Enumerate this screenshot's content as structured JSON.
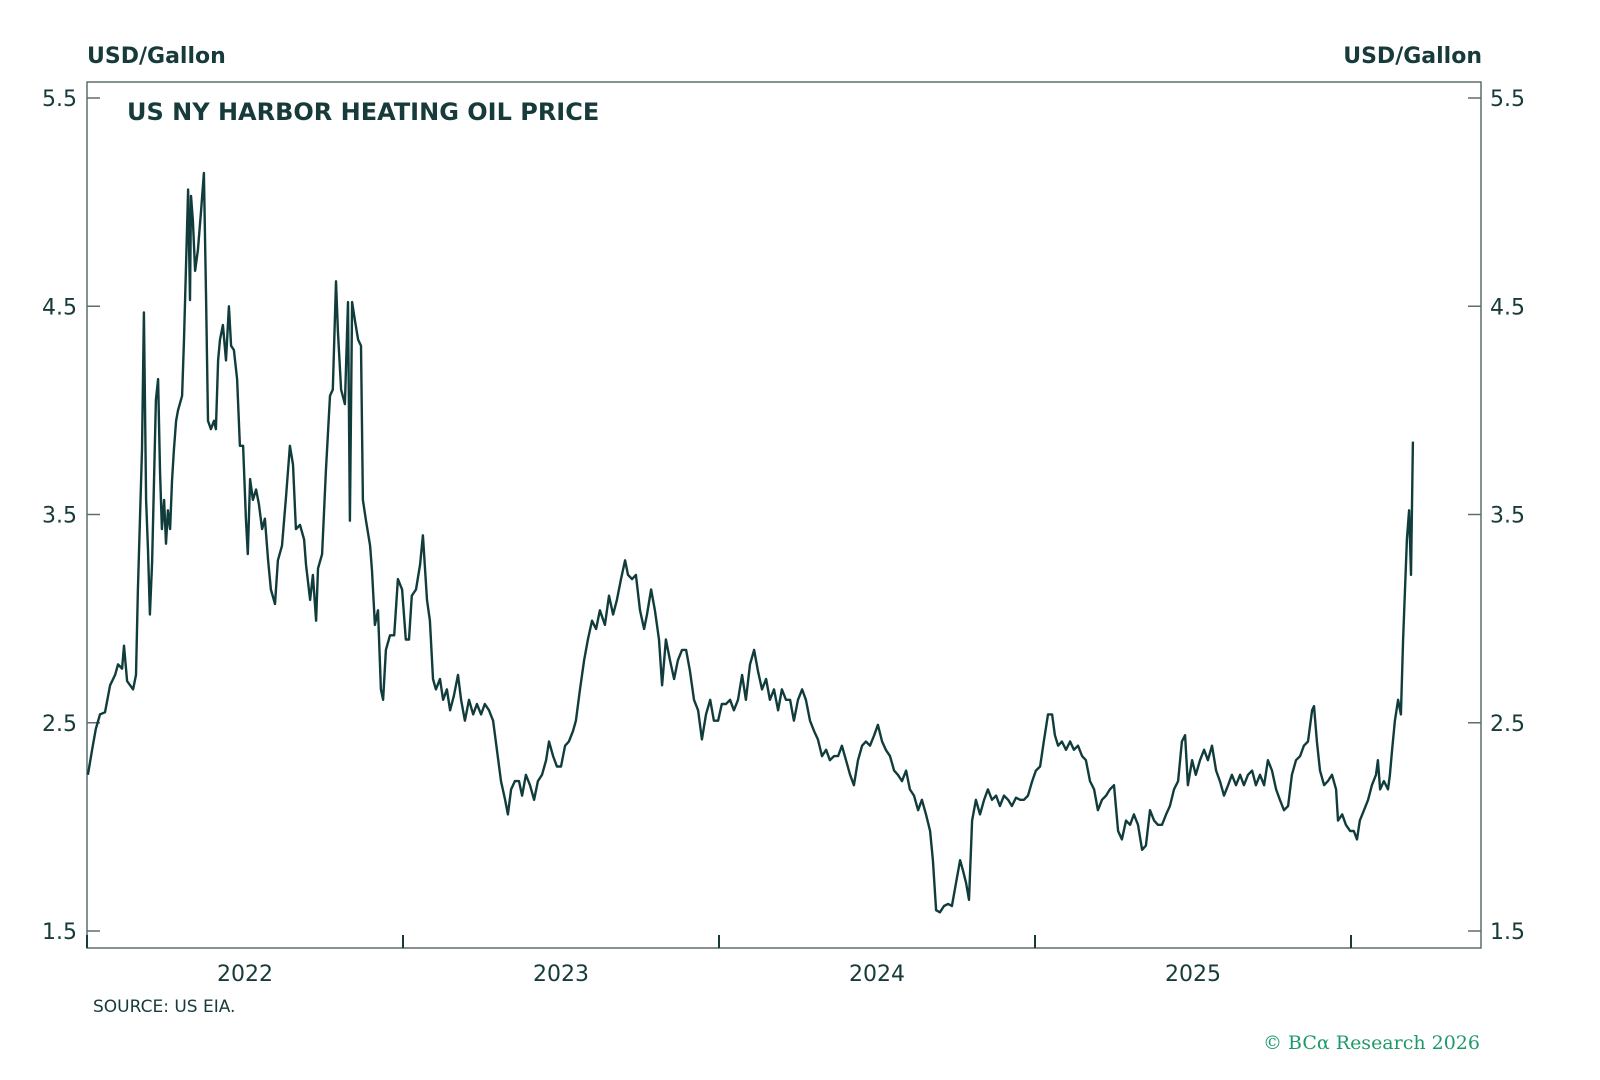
{
  "chart_data": {
    "type": "line",
    "title": "US NY HARBOR HEATING OIL PRICE",
    "ylabel_left": "USD/Gallon",
    "ylabel_right": "USD/Gallon",
    "ylim": [
      1.5,
      5.5
    ],
    "yticks": [
      1.5,
      2.5,
      3.5,
      4.5,
      5.5
    ],
    "ytick_labels": [
      "1.5",
      "2.5",
      "3.5",
      "4.5",
      "5.5"
    ],
    "xlim": [
      2022.0,
      2026.4
    ],
    "xtick_positions": [
      2022,
      2023,
      2024,
      2025,
      2026
    ],
    "xtick_labels": [
      "2022",
      "2023",
      "2024",
      "2025"
    ],
    "grid": false,
    "line_color": "#113c3c",
    "series": [
      {
        "x": [
          2022.003,
          2022.016,
          2022.028,
          2022.041,
          2022.057,
          2022.073,
          2022.089,
          2022.098,
          2022.111,
          2022.117,
          2022.127,
          2022.146,
          2022.155,
          2022.161,
          2022.168,
          2022.174,
          2022.18,
          2022.187,
          2022.193,
          2022.199,
          2022.206,
          2022.212,
          2022.218,
          2022.225,
          2022.231,
          2022.237,
          2022.244,
          2022.25,
          2022.256,
          2022.263,
          2022.269,
          2022.275,
          2022.282,
          2022.288,
          2022.301,
          2022.307,
          2022.32,
          2022.326,
          2022.329,
          2022.335,
          2022.342,
          2022.351,
          2022.361,
          2022.37,
          2022.377,
          2022.383,
          2022.392,
          2022.402,
          2022.408,
          2022.415,
          2022.421,
          2022.43,
          2022.44,
          2022.449,
          2022.456,
          2022.465,
          2022.475,
          2022.484,
          2022.494,
          2022.503,
          2022.509,
          2022.516,
          2022.525,
          2022.535,
          2022.544,
          2022.554,
          2022.563,
          2022.573,
          2022.582,
          2022.595,
          2022.604,
          2022.617,
          2022.63,
          2022.642,
          2022.652,
          2022.661,
          2022.674,
          2022.687,
          2022.693,
          2022.706,
          2022.715,
          2022.725,
          2022.731,
          2022.744,
          2022.756,
          2022.769,
          2022.778,
          2022.788,
          2022.794,
          2022.804,
          2022.816,
          2022.826,
          2022.832,
          2022.839,
          2022.848,
          2022.858,
          2022.867,
          2022.873,
          2022.883,
          2022.896,
          2022.902,
          2022.911,
          2022.921,
          2022.93,
          2022.937,
          2022.946,
          2022.959,
          2022.972,
          2022.984,
          2022.997,
          2023.009,
          2023.019,
          2023.028,
          2023.041,
          2023.054,
          2023.063,
          2023.076,
          2023.085,
          2023.095,
          2023.104,
          2023.117,
          2023.127,
          2023.139,
          2023.149,
          2023.161,
          2023.174,
          2023.184,
          2023.196,
          2023.209,
          2023.222,
          2023.234,
          2023.247,
          2023.259,
          2023.272,
          2023.285,
          2023.297,
          2023.31,
          2023.323,
          2023.332,
          2023.342,
          2023.354,
          2023.367,
          2023.377,
          2023.389,
          2023.402,
          2023.415,
          2023.427,
          2023.44,
          2023.453,
          2023.462,
          2023.475,
          2023.487,
          2023.5,
          2023.513,
          2023.525,
          2023.538,
          2023.547,
          2023.56,
          2023.573,
          2023.585,
          2023.598,
          2023.611,
          2023.623,
          2023.639,
          2023.652,
          2023.665,
          2023.677,
          2023.69,
          2023.703,
          2023.712,
          2023.725,
          2023.737,
          2023.75,
          2023.763,
          2023.772,
          2023.785,
          2023.797,
          2023.81,
          2023.82,
          2023.832,
          2023.845,
          2023.858,
          2023.87,
          2023.883,
          2023.896,
          2023.908,
          2023.921,
          2023.934,
          2023.946,
          2023.959,
          2023.972,
          2023.984,
          2023.997,
          2024.009,
          2024.022,
          2024.035,
          2024.047,
          2024.06,
          2024.073,
          2024.085,
          2024.098,
          2024.111,
          2024.123,
          2024.136,
          2024.149,
          2024.161,
          2024.174,
          2024.187,
          2024.199,
          2024.212,
          2024.225,
          2024.237,
          2024.25,
          2024.263,
          2024.275,
          2024.288,
          2024.301,
          2024.313,
          2024.326,
          2024.339,
          2024.351,
          2024.364,
          2024.377,
          2024.389,
          2024.402,
          2024.415,
          2024.427,
          2024.44,
          2024.453,
          2024.465,
          2024.478,
          2024.491,
          2024.503,
          2024.516,
          2024.528,
          2024.541,
          2024.554,
          2024.566,
          2024.579,
          2024.592,
          2024.604,
          2024.617,
          2024.63,
          2024.642,
          2024.655,
          2024.668,
          2024.677,
          2024.687,
          2024.699,
          2024.712,
          2024.725,
          2024.737,
          2024.75,
          2024.763,
          2024.772,
          2024.782,
          2024.791,
          2024.801,
          2024.813,
          2024.826,
          2024.839,
          2024.851,
          2024.864,
          2024.877,
          2024.889,
          2024.902,
          2024.915,
          2024.927,
          2024.94,
          2024.953,
          2024.965,
          2024.978,
          2024.991,
          2025.003,
          2025.016,
          2025.028,
          2025.041,
          2025.054,
          2025.063,
          2025.073,
          2025.085,
          2025.098,
          2025.111,
          2025.123,
          2025.136,
          2025.149,
          2025.161,
          2025.174,
          2025.187,
          2025.199,
          2025.212,
          2025.225,
          2025.237,
          2025.25,
          2025.263,
          2025.275,
          2025.288,
          2025.301,
          2025.313,
          2025.326,
          2025.339,
          2025.351,
          2025.364,
          2025.377,
          2025.389,
          2025.402,
          2025.415,
          2025.427,
          2025.44,
          2025.453,
          2025.465,
          2025.475,
          2025.484,
          2025.497,
          2025.509,
          2025.522,
          2025.535,
          2025.547,
          2025.56,
          2025.573,
          2025.585,
          2025.598,
          2025.611,
          2025.623,
          2025.636,
          2025.649,
          2025.661,
          2025.674,
          2025.687,
          2025.699,
          2025.712,
          2025.725,
          2025.737,
          2025.75,
          2025.763,
          2025.775,
          2025.788,
          2025.801,
          2025.813,
          2025.826,
          2025.839,
          2025.851,
          2025.864,
          2025.877,
          2025.883,
          2025.892,
          2025.902,
          2025.915,
          2025.927,
          2025.94,
          2025.953,
          2025.959,
          2025.972,
          2025.984,
          2025.997,
          2026.009,
          2026.019,
          2026.028,
          2026.041,
          2026.054,
          2026.066,
          2026.079,
          2026.085,
          2026.092,
          2026.104,
          2026.117,
          2026.123,
          2026.13,
          2026.139,
          2026.149,
          2026.158,
          2026.165,
          2026.171,
          2026.177,
          2026.184,
          2026.19,
          2026.196
        ],
        "y": [
          2.25,
          2.37,
          2.47,
          2.54,
          2.55,
          2.68,
          2.73,
          2.78,
          2.76,
          2.87,
          2.7,
          2.66,
          2.73,
          3.14,
          3.5,
          3.81,
          4.47,
          3.57,
          3.33,
          3.02,
          3.27,
          3.66,
          4.05,
          4.15,
          3.71,
          3.43,
          3.57,
          3.36,
          3.52,
          3.43,
          3.66,
          3.81,
          3.95,
          4.0,
          4.07,
          4.34,
          5.06,
          4.53,
          5.03,
          4.91,
          4.67,
          4.77,
          4.96,
          5.14,
          4.53,
          3.95,
          3.91,
          3.95,
          3.91,
          4.24,
          4.34,
          4.41,
          4.24,
          4.5,
          4.31,
          4.29,
          4.15,
          3.83,
          3.83,
          3.48,
          3.31,
          3.67,
          3.57,
          3.62,
          3.55,
          3.43,
          3.48,
          3.28,
          3.14,
          3.07,
          3.28,
          3.35,
          3.59,
          3.83,
          3.74,
          3.43,
          3.45,
          3.38,
          3.26,
          3.09,
          3.21,
          2.99,
          3.24,
          3.31,
          3.71,
          4.07,
          4.1,
          4.62,
          4.38,
          4.1,
          4.03,
          4.52,
          3.47,
          4.52,
          4.43,
          4.34,
          4.31,
          3.57,
          3.47,
          3.35,
          3.23,
          2.97,
          3.04,
          2.66,
          2.61,
          2.85,
          2.92,
          2.92,
          3.19,
          3.14,
          2.9,
          2.9,
          3.11,
          3.14,
          3.26,
          3.4,
          3.09,
          2.99,
          2.71,
          2.66,
          2.71,
          2.61,
          2.66,
          2.56,
          2.63,
          2.73,
          2.61,
          2.51,
          2.61,
          2.54,
          2.59,
          2.54,
          2.59,
          2.56,
          2.51,
          2.37,
          2.22,
          2.13,
          2.06,
          2.18,
          2.22,
          2.22,
          2.15,
          2.25,
          2.2,
          2.13,
          2.22,
          2.25,
          2.32,
          2.41,
          2.34,
          2.29,
          2.29,
          2.39,
          2.41,
          2.46,
          2.51,
          2.66,
          2.8,
          2.9,
          2.99,
          2.95,
          3.04,
          2.97,
          3.11,
          3.02,
          3.09,
          3.19,
          3.28,
          3.21,
          3.19,
          3.21,
          3.04,
          2.95,
          3.02,
          3.14,
          3.04,
          2.9,
          2.68,
          2.9,
          2.8,
          2.71,
          2.8,
          2.85,
          2.85,
          2.75,
          2.61,
          2.56,
          2.42,
          2.54,
          2.61,
          2.51,
          2.51,
          2.59,
          2.59,
          2.61,
          2.56,
          2.61,
          2.73,
          2.61,
          2.78,
          2.85,
          2.75,
          2.66,
          2.71,
          2.61,
          2.66,
          2.56,
          2.66,
          2.61,
          2.61,
          2.51,
          2.61,
          2.66,
          2.61,
          2.51,
          2.46,
          2.42,
          2.34,
          2.37,
          2.32,
          2.34,
          2.34,
          2.39,
          2.32,
          2.25,
          2.2,
          2.32,
          2.39,
          2.41,
          2.39,
          2.44,
          2.49,
          2.41,
          2.37,
          2.34,
          2.27,
          2.25,
          2.22,
          2.27,
          2.18,
          2.15,
          2.08,
          2.13,
          2.06,
          1.98,
          1.84,
          1.6,
          1.59,
          1.62,
          1.63,
          1.62,
          1.73,
          1.84,
          1.79,
          1.73,
          1.65,
          2.03,
          2.13,
          2.06,
          2.13,
          2.18,
          2.13,
          2.15,
          2.1,
          2.15,
          2.13,
          2.1,
          2.14,
          2.13,
          2.13,
          2.15,
          2.22,
          2.27,
          2.29,
          2.41,
          2.54,
          2.54,
          2.44,
          2.39,
          2.41,
          2.37,
          2.41,
          2.37,
          2.39,
          2.34,
          2.32,
          2.22,
          2.18,
          2.08,
          2.13,
          2.15,
          2.18,
          2.2,
          1.98,
          1.94,
          2.03,
          2.01,
          2.06,
          2.01,
          1.89,
          1.91,
          2.08,
          2.03,
          2.01,
          2.01,
          2.06,
          2.1,
          2.18,
          2.22,
          2.41,
          2.44,
          2.2,
          2.32,
          2.25,
          2.32,
          2.37,
          2.32,
          2.39,
          2.27,
          2.22,
          2.15,
          2.2,
          2.25,
          2.2,
          2.25,
          2.2,
          2.25,
          2.27,
          2.2,
          2.25,
          2.2,
          2.32,
          2.27,
          2.18,
          2.13,
          2.08,
          2.1,
          2.25,
          2.32,
          2.34,
          2.39,
          2.41,
          2.56,
          2.58,
          2.41,
          2.27,
          2.2,
          2.22,
          2.25,
          2.18,
          2.03,
          2.06,
          2.01,
          1.98,
          1.98,
          1.94,
          2.03,
          2.08,
          2.13,
          2.2,
          2.25,
          2.32,
          2.18,
          2.22,
          2.18,
          2.25,
          2.37,
          2.51,
          2.61,
          2.54,
          2.9,
          3.14,
          3.38,
          3.52,
          3.21,
          3.85
        ]
      }
    ],
    "source": "SOURCE: US EIA.",
    "copyright": "© BCα Research 2026"
  },
  "colors": {
    "text": "#173a3a",
    "axis": "#5d6e6e",
    "line": "#113c3c",
    "brand": "#1e9a6a"
  }
}
